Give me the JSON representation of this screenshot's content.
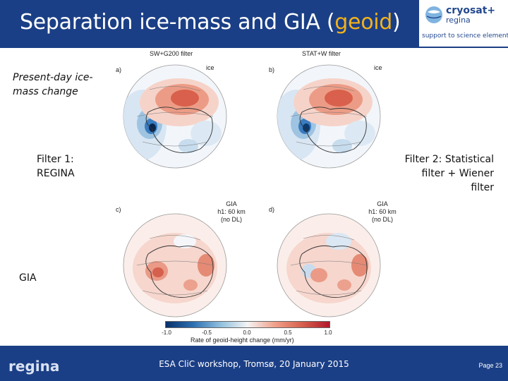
{
  "header": {
    "title_prefix": "Separation ice-mass and GIA (",
    "title_highlight": "geoid",
    "title_suffix": ")",
    "background": "#1b3f86",
    "highlight_color": "#f2b21b"
  },
  "logo": {
    "name": "cryosat+",
    "subname": "regina",
    "tagline": "support to science element",
    "icon": "globe-icon"
  },
  "labels": {
    "present_day": "Present-day ice-mass change",
    "filter1": "Filter 1: REGINA",
    "filter2": "Filter 2: Statistical filter + Wiener filter",
    "gia": "GIA"
  },
  "panels": [
    {
      "letter": "a)",
      "title": "SW+G200 filter",
      "tag": "ice",
      "note": ""
    },
    {
      "letter": "b)",
      "title": "STAT+W filter",
      "tag": "ice",
      "note": ""
    },
    {
      "letter": "c)",
      "title": "",
      "tag": "",
      "note": "GIA\nh1: 60 km\n(no DL)"
    },
    {
      "letter": "d)",
      "title": "",
      "tag": "",
      "note": "GIA\nh1: 60 km\n(no DL)"
    }
  ],
  "colorbar": {
    "ticks": [
      "-1.0",
      "-0.5",
      "0.0",
      "0.5",
      "1.0"
    ],
    "label": "Rate of geoid-height change (mm/yr)",
    "colors": [
      "#08306b",
      "#2c6fb0",
      "#f4f4f4",
      "#d6604d",
      "#b2182b"
    ]
  },
  "footer": {
    "brand": "regina",
    "event": "ESA CliC workshop, Tromsø, 20 January 2015",
    "page": "Page 23"
  }
}
